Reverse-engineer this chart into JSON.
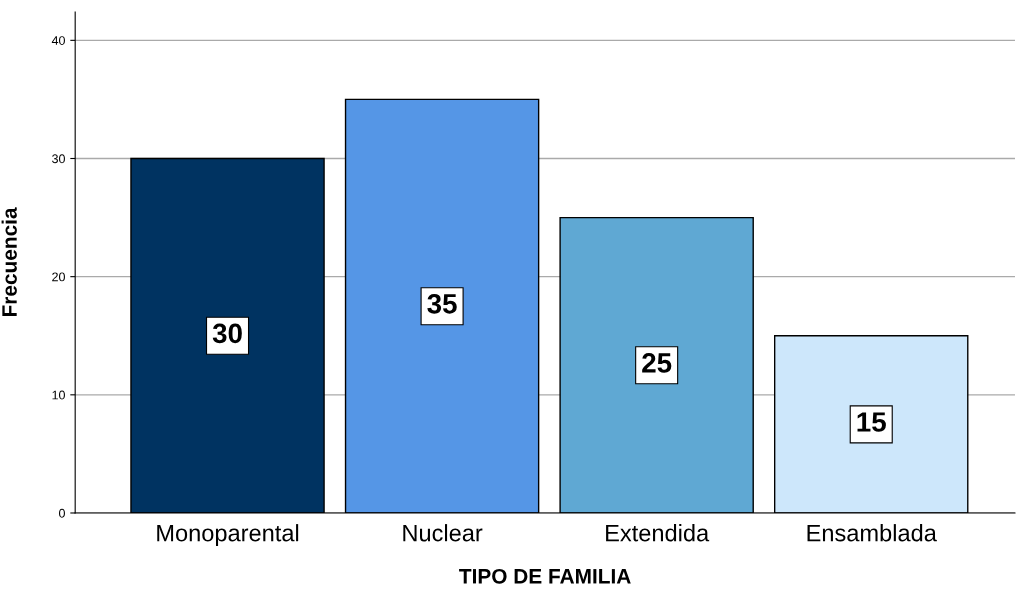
{
  "chart_data": {
    "type": "bar",
    "xlabel": "TIPO DE FAMILIA",
    "ylabel": "Frecuencia",
    "categories": [
      "Monoparental",
      "Nuclear",
      "Extendida",
      "Ensamblada"
    ],
    "values": [
      30,
      35,
      25,
      15
    ],
    "colors": [
      "#003361",
      "#5596e6",
      "#5fa8d3",
      "#cde7fb"
    ],
    "ylim": [
      0,
      42.4
    ],
    "yticks": [
      0,
      10,
      20,
      30,
      40
    ],
    "grid": "y",
    "data_labels": true,
    "legend": false
  }
}
